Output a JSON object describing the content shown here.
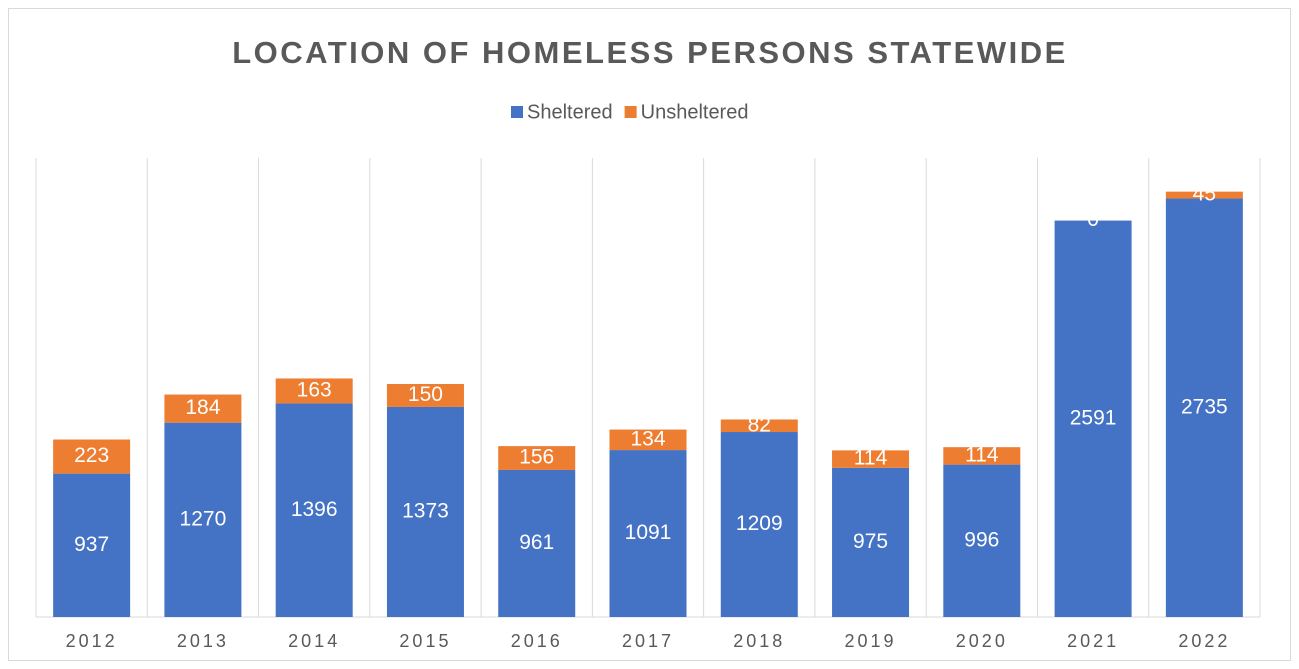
{
  "chart_data": {
    "type": "stacked_bar",
    "title": "LOCATION OF HOMELESS PERSONS STATEWIDE",
    "categories": [
      "2012",
      "2013",
      "2014",
      "2015",
      "2016",
      "2017",
      "2018",
      "2019",
      "2020",
      "2021",
      "2022"
    ],
    "series": [
      {
        "name": "Sheltered",
        "color": "#4472c4",
        "values": [
          937,
          1270,
          1396,
          1373,
          961,
          1091,
          1209,
          975,
          996,
          2591,
          2735
        ]
      },
      {
        "name": "Unsheltered",
        "color": "#ed7d31",
        "values": [
          223,
          184,
          163,
          150,
          156,
          134,
          82,
          114,
          114,
          0,
          45
        ]
      }
    ],
    "ylim": [
      0,
      3000
    ],
    "legend": "top"
  }
}
